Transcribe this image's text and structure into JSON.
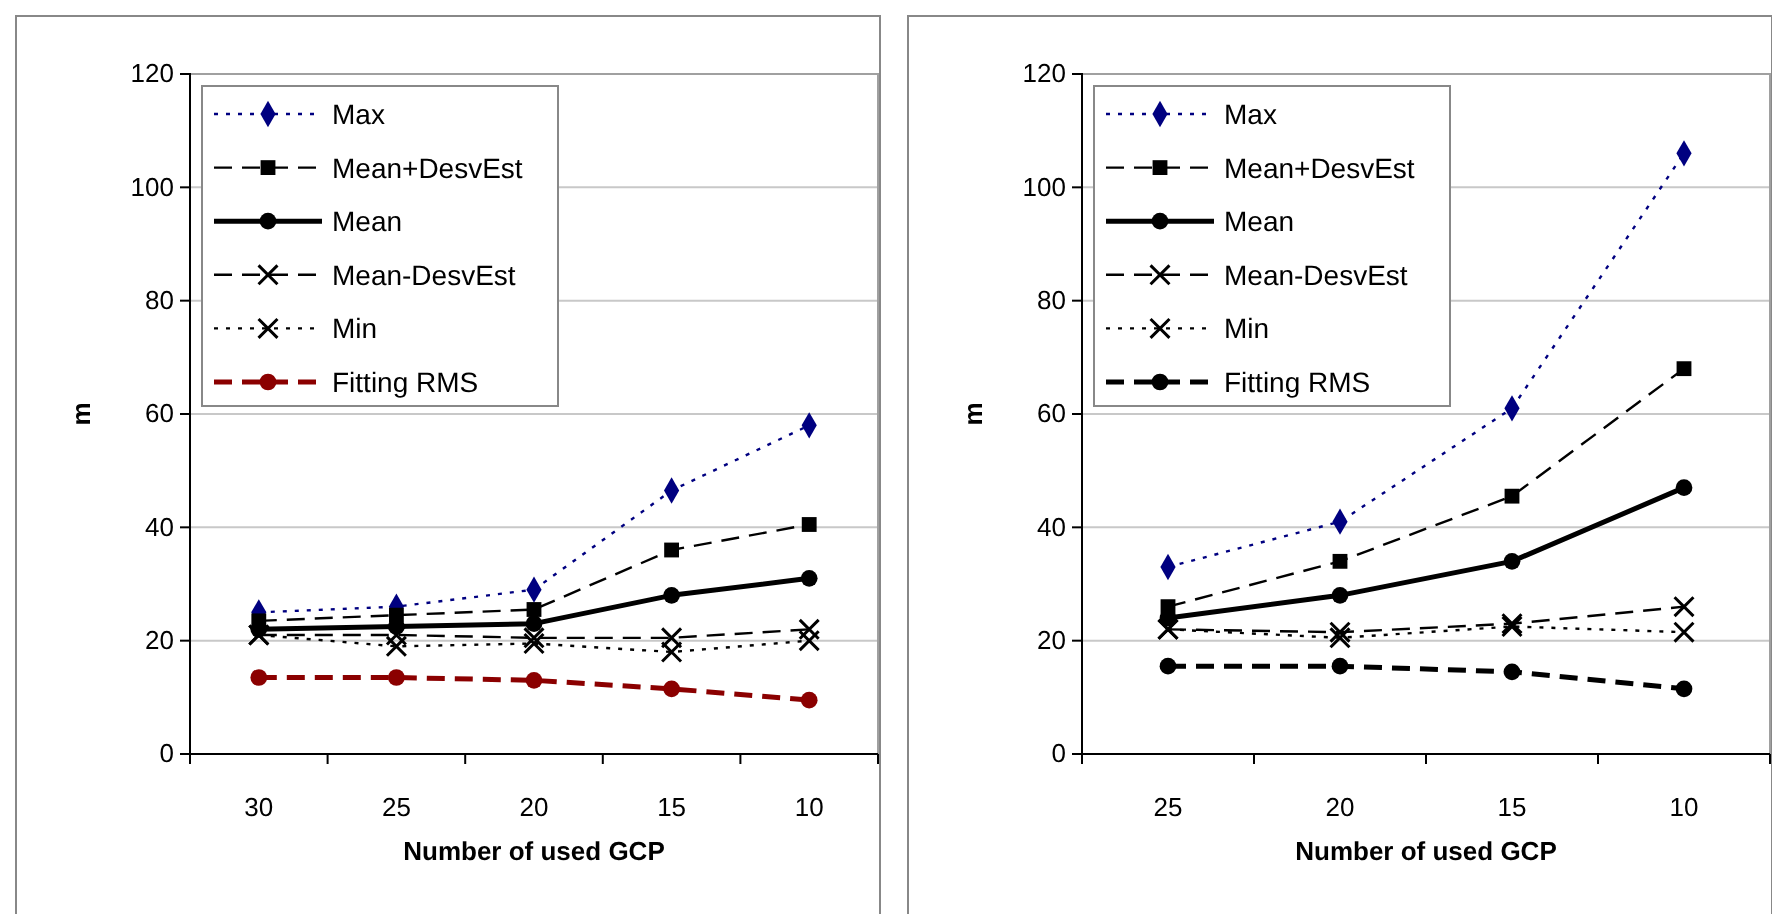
{
  "chart_data": [
    {
      "type": "line",
      "xlabel": "Number of used GCP",
      "ylabel": "m",
      "categories": [
        "30",
        "25",
        "20",
        "15",
        "10"
      ],
      "ylim": [
        0,
        120
      ],
      "yticks": [
        0,
        20,
        40,
        60,
        80,
        100,
        120
      ],
      "grid": "y",
      "legend": "top left",
      "series": [
        {
          "name": "Max",
          "color": "#000080",
          "marker": "diamond",
          "line_style": "dotted",
          "values": [
            25,
            26,
            29,
            46.5,
            58
          ]
        },
        {
          "name": "Mean+DesvEst",
          "color": "#000000",
          "marker": "square",
          "line_style": "dashed",
          "values": [
            23.5,
            24.5,
            25.5,
            36,
            40.5
          ]
        },
        {
          "name": "Mean",
          "color": "#000000",
          "marker": "circle",
          "line_style": "solid",
          "values": [
            22,
            22.5,
            23,
            28,
            31
          ]
        },
        {
          "name": "Mean-DesvEst",
          "color": "#000000",
          "marker": "cross",
          "line_style": "dashed",
          "values": [
            21,
            21,
            20.5,
            20.5,
            22
          ]
        },
        {
          "name": "Min",
          "color": "#000000",
          "marker": "cross",
          "line_style": "dotted",
          "values": [
            21,
            19,
            19.5,
            18,
            20
          ]
        },
        {
          "name": "Fitting RMS",
          "color": "#8b0000",
          "marker": "circle",
          "line_style": "dashed",
          "values": [
            13.5,
            13.5,
            13,
            11.5,
            9.5
          ]
        }
      ]
    },
    {
      "type": "line",
      "xlabel": "Number of used GCP",
      "ylabel": "m",
      "categories": [
        "25",
        "20",
        "15",
        "10"
      ],
      "ylim": [
        0,
        120
      ],
      "yticks": [
        0,
        20,
        40,
        60,
        80,
        100,
        120
      ],
      "grid": "y",
      "legend": "top left",
      "series": [
        {
          "name": "Max",
          "color": "#000080",
          "marker": "diamond",
          "line_style": "dotted",
          "values": [
            33,
            41,
            61,
            106
          ]
        },
        {
          "name": "Mean+DesvEst",
          "color": "#000000",
          "marker": "square",
          "line_style": "dashed",
          "values": [
            26,
            34,
            45.5,
            68
          ]
        },
        {
          "name": "Mean",
          "color": "#000000",
          "marker": "circle",
          "line_style": "solid",
          "values": [
            24,
            28,
            34,
            47
          ]
        },
        {
          "name": "Mean-DesvEst",
          "color": "#000000",
          "marker": "cross",
          "line_style": "dashed",
          "values": [
            22,
            21.5,
            23,
            26
          ]
        },
        {
          "name": "Min",
          "color": "#000000",
          "marker": "cross",
          "line_style": "dotted",
          "values": [
            22,
            20.5,
            22.5,
            21.5
          ]
        },
        {
          "name": "Fitting RMS",
          "color": "#000000",
          "marker": "circle",
          "line_style": "dashed",
          "values": [
            15.5,
            15.5,
            14.5,
            11.5
          ]
        }
      ]
    }
  ]
}
